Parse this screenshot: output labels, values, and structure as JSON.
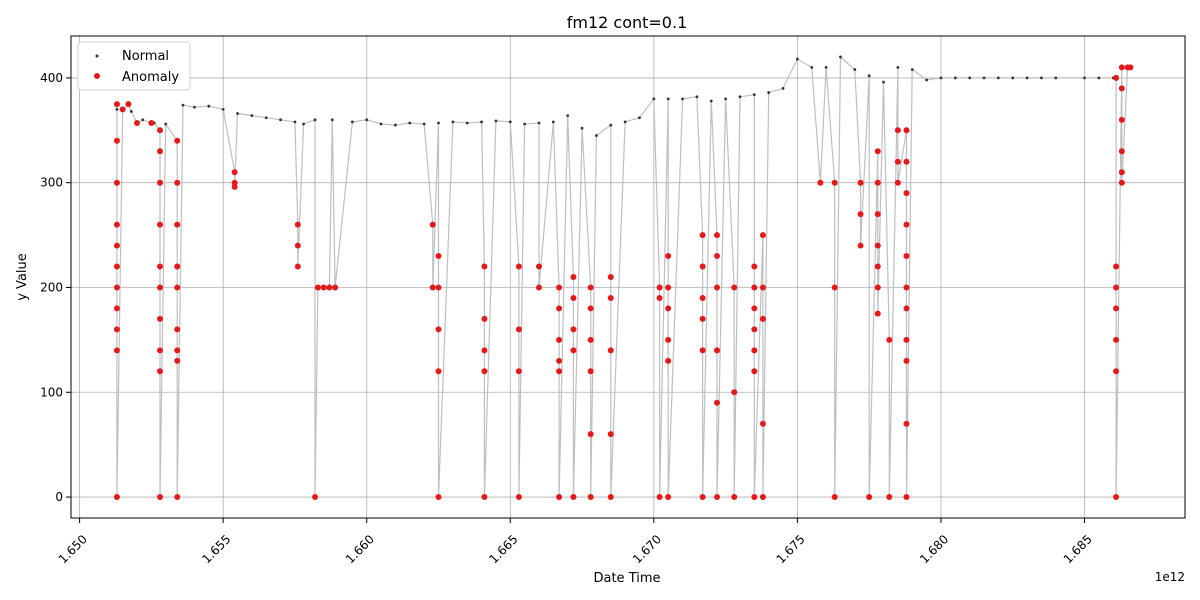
{
  "chart_data": {
    "type": "scatter",
    "title": "fm12 cont=0.1",
    "xlabel": "Date Time",
    "ylabel": "y Value",
    "x_offset_text": "1e12",
    "xlim": [
      1.6497,
      1.6885
    ],
    "ylim": [
      -20,
      440
    ],
    "x_ticks": [
      1.65,
      1.655,
      1.66,
      1.665,
      1.67,
      1.675,
      1.68,
      1.685
    ],
    "x_tick_labels": [
      "1.650",
      "1.655",
      "1.660",
      "1.665",
      "1.670",
      "1.675",
      "1.680",
      "1.685"
    ],
    "y_ticks": [
      0,
      100,
      200,
      300,
      400
    ],
    "y_tick_labels": [
      "0",
      "100",
      "200",
      "300",
      "400"
    ],
    "grid": true,
    "legend": {
      "position": "top-left",
      "entries": [
        "Normal",
        "Anomaly"
      ]
    },
    "colors": {
      "normal": "#333333",
      "anomaly": "#e31a1c",
      "line": "#bfbfbf",
      "grid": "#b0b0b0"
    },
    "series": [
      {
        "name": "Normal",
        "points": [
          [
            1.6513,
            370
          ],
          [
            1.6518,
            368
          ],
          [
            1.6522,
            360
          ],
          [
            1.6526,
            357
          ],
          [
            1.653,
            356
          ],
          [
            1.6536,
            374
          ],
          [
            1.654,
            372
          ],
          [
            1.6545,
            373
          ],
          [
            1.655,
            370
          ],
          [
            1.6555,
            366
          ],
          [
            1.656,
            364
          ],
          [
            1.6565,
            362
          ],
          [
            1.657,
            360
          ],
          [
            1.6575,
            358
          ],
          [
            1.6578,
            356
          ],
          [
            1.6582,
            360
          ],
          [
            1.6588,
            360
          ],
          [
            1.6595,
            358
          ],
          [
            1.66,
            360
          ],
          [
            1.6605,
            356
          ],
          [
            1.661,
            355
          ],
          [
            1.6615,
            357
          ],
          [
            1.662,
            356
          ],
          [
            1.6625,
            357
          ],
          [
            1.663,
            358
          ],
          [
            1.6635,
            357
          ],
          [
            1.664,
            358
          ],
          [
            1.6645,
            359
          ],
          [
            1.665,
            358
          ],
          [
            1.6655,
            356
          ],
          [
            1.666,
            357
          ],
          [
            1.6665,
            358
          ],
          [
            1.667,
            364
          ],
          [
            1.6675,
            352
          ],
          [
            1.668,
            345
          ],
          [
            1.6685,
            355
          ],
          [
            1.669,
            358
          ],
          [
            1.6695,
            362
          ],
          [
            1.67,
            380
          ],
          [
            1.6705,
            380
          ],
          [
            1.671,
            380
          ],
          [
            1.6715,
            382
          ],
          [
            1.672,
            378
          ],
          [
            1.6725,
            380
          ],
          [
            1.673,
            382
          ],
          [
            1.6735,
            384
          ],
          [
            1.674,
            386
          ],
          [
            1.6745,
            390
          ],
          [
            1.675,
            418
          ],
          [
            1.6755,
            410
          ],
          [
            1.676,
            410
          ],
          [
            1.6765,
            420
          ],
          [
            1.677,
            408
          ],
          [
            1.6775,
            402
          ],
          [
            1.678,
            396
          ],
          [
            1.6785,
            410
          ],
          [
            1.679,
            408
          ],
          [
            1.6795,
            398
          ],
          [
            1.68,
            400
          ],
          [
            1.6805,
            400
          ],
          [
            1.681,
            400
          ],
          [
            1.6815,
            400
          ],
          [
            1.682,
            400
          ],
          [
            1.6825,
            400
          ],
          [
            1.683,
            400
          ],
          [
            1.6835,
            400
          ],
          [
            1.684,
            400
          ],
          [
            1.685,
            400
          ],
          [
            1.6855,
            400
          ],
          [
            1.686,
            400
          ]
        ]
      },
      {
        "name": "Anomaly",
        "points": [
          [
            1.6513,
            375
          ],
          [
            1.6513,
            340
          ],
          [
            1.6513,
            300
          ],
          [
            1.6513,
            260
          ],
          [
            1.6513,
            240
          ],
          [
            1.6513,
            220
          ],
          [
            1.6513,
            200
          ],
          [
            1.6513,
            180
          ],
          [
            1.6513,
            160
          ],
          [
            1.6513,
            140
          ],
          [
            1.6513,
            0
          ],
          [
            1.6515,
            370
          ],
          [
            1.6517,
            375
          ],
          [
            1.652,
            357
          ],
          [
            1.6525,
            357
          ],
          [
            1.6528,
            350
          ],
          [
            1.6528,
            330
          ],
          [
            1.6528,
            300
          ],
          [
            1.6528,
            260
          ],
          [
            1.6528,
            220
          ],
          [
            1.6528,
            200
          ],
          [
            1.6528,
            170
          ],
          [
            1.6528,
            140
          ],
          [
            1.6528,
            120
          ],
          [
            1.6528,
            0
          ],
          [
            1.6534,
            340
          ],
          [
            1.6534,
            300
          ],
          [
            1.6534,
            260
          ],
          [
            1.6534,
            220
          ],
          [
            1.6534,
            200
          ],
          [
            1.6534,
            160
          ],
          [
            1.6534,
            140
          ],
          [
            1.6534,
            130
          ],
          [
            1.6534,
            0
          ],
          [
            1.6554,
            310
          ],
          [
            1.6554,
            300
          ],
          [
            1.6554,
            296
          ],
          [
            1.6576,
            260
          ],
          [
            1.6576,
            240
          ],
          [
            1.6576,
            220
          ],
          [
            1.6582,
            0
          ],
          [
            1.6583,
            200
          ],
          [
            1.6585,
            200
          ],
          [
            1.6587,
            200
          ],
          [
            1.6589,
            200
          ],
          [
            1.6623,
            260
          ],
          [
            1.6623,
            200
          ],
          [
            1.6625,
            230
          ],
          [
            1.6625,
            200
          ],
          [
            1.6625,
            160
          ],
          [
            1.6625,
            120
          ],
          [
            1.6625,
            0
          ],
          [
            1.6641,
            220
          ],
          [
            1.6641,
            170
          ],
          [
            1.6641,
            140
          ],
          [
            1.6641,
            120
          ],
          [
            1.6641,
            0
          ],
          [
            1.6653,
            220
          ],
          [
            1.6653,
            160
          ],
          [
            1.6653,
            120
          ],
          [
            1.6653,
            0
          ],
          [
            1.666,
            220
          ],
          [
            1.666,
            200
          ],
          [
            1.6667,
            200
          ],
          [
            1.6667,
            180
          ],
          [
            1.6667,
            150
          ],
          [
            1.6667,
            130
          ],
          [
            1.6667,
            120
          ],
          [
            1.6667,
            0
          ],
          [
            1.6672,
            210
          ],
          [
            1.6672,
            190
          ],
          [
            1.6672,
            160
          ],
          [
            1.6672,
            140
          ],
          [
            1.6672,
            0
          ],
          [
            1.6678,
            200
          ],
          [
            1.6678,
            180
          ],
          [
            1.6678,
            150
          ],
          [
            1.6678,
            120
          ],
          [
            1.6678,
            60
          ],
          [
            1.6678,
            0
          ],
          [
            1.6685,
            210
          ],
          [
            1.6685,
            190
          ],
          [
            1.6685,
            140
          ],
          [
            1.6685,
            60
          ],
          [
            1.6685,
            0
          ],
          [
            1.6702,
            200
          ],
          [
            1.6702,
            190
          ],
          [
            1.6702,
            0
          ],
          [
            1.6705,
            230
          ],
          [
            1.6705,
            200
          ],
          [
            1.6705,
            180
          ],
          [
            1.6705,
            150
          ],
          [
            1.6705,
            130
          ],
          [
            1.6705,
            0
          ],
          [
            1.6717,
            250
          ],
          [
            1.6717,
            220
          ],
          [
            1.6717,
            190
          ],
          [
            1.6717,
            170
          ],
          [
            1.6717,
            140
          ],
          [
            1.6717,
            0
          ],
          [
            1.6722,
            250
          ],
          [
            1.6722,
            230
          ],
          [
            1.6722,
            200
          ],
          [
            1.6722,
            140
          ],
          [
            1.6722,
            90
          ],
          [
            1.6722,
            0
          ],
          [
            1.6728,
            200
          ],
          [
            1.6728,
            100
          ],
          [
            1.6728,
            0
          ],
          [
            1.6735,
            220
          ],
          [
            1.6735,
            200
          ],
          [
            1.6735,
            180
          ],
          [
            1.6735,
            160
          ],
          [
            1.6735,
            140
          ],
          [
            1.6735,
            120
          ],
          [
            1.6735,
            0
          ],
          [
            1.6738,
            250
          ],
          [
            1.6738,
            200
          ],
          [
            1.6738,
            170
          ],
          [
            1.6738,
            70
          ],
          [
            1.6738,
            0
          ],
          [
            1.6758,
            300
          ],
          [
            1.6763,
            300
          ],
          [
            1.6763,
            200
          ],
          [
            1.6763,
            0
          ],
          [
            1.6772,
            300
          ],
          [
            1.6772,
            270
          ],
          [
            1.6772,
            240
          ],
          [
            1.6775,
            0
          ],
          [
            1.6778,
            330
          ],
          [
            1.6778,
            300
          ],
          [
            1.6778,
            270
          ],
          [
            1.6778,
            240
          ],
          [
            1.6778,
            220
          ],
          [
            1.6778,
            200
          ],
          [
            1.6778,
            175
          ],
          [
            1.6782,
            150
          ],
          [
            1.6782,
            0
          ],
          [
            1.6785,
            350
          ],
          [
            1.6785,
            320
          ],
          [
            1.6785,
            300
          ],
          [
            1.6788,
            350
          ],
          [
            1.6788,
            320
          ],
          [
            1.6788,
            290
          ],
          [
            1.6788,
            260
          ],
          [
            1.6788,
            230
          ],
          [
            1.6788,
            200
          ],
          [
            1.6788,
            180
          ],
          [
            1.6788,
            150
          ],
          [
            1.6788,
            130
          ],
          [
            1.6788,
            70
          ],
          [
            1.6788,
            0
          ],
          [
            1.6861,
            400
          ],
          [
            1.6861,
            220
          ],
          [
            1.6861,
            200
          ],
          [
            1.6861,
            180
          ],
          [
            1.6861,
            150
          ],
          [
            1.6861,
            120
          ],
          [
            1.6861,
            0
          ],
          [
            1.6863,
            410
          ],
          [
            1.6863,
            390
          ],
          [
            1.6863,
            360
          ],
          [
            1.6863,
            330
          ],
          [
            1.6863,
            310
          ],
          [
            1.6863,
            300
          ],
          [
            1.6865,
            410
          ],
          [
            1.6866,
            410
          ]
        ]
      }
    ]
  }
}
